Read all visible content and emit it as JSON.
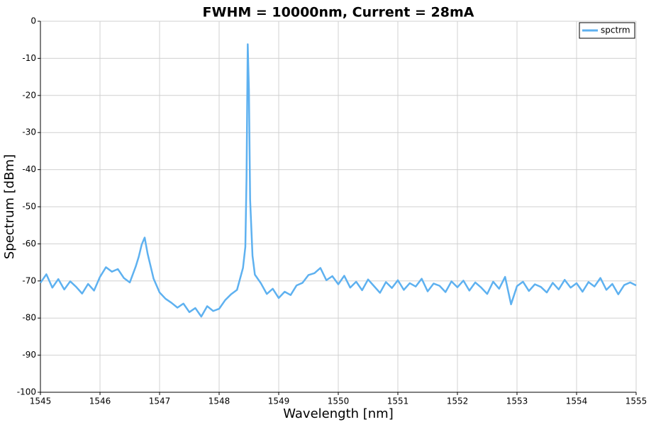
{
  "chart_data": {
    "type": "line",
    "title": "FWHM = 10000nm, Current = 28mA",
    "xlabel": "Wavelength [nm]",
    "ylabel": "Spectrum [dBm]",
    "x": [
      1545.0,
      1545.1,
      1545.2,
      1545.3,
      1545.4,
      1545.5,
      1545.6,
      1545.7,
      1545.8,
      1545.9,
      1546.0,
      1546.1,
      1546.2,
      1546.3,
      1546.4,
      1546.5,
      1546.6,
      1546.65,
      1546.7,
      1546.75,
      1546.8,
      1546.9,
      1547.0,
      1547.1,
      1547.2,
      1547.3,
      1547.4,
      1547.5,
      1547.6,
      1547.7,
      1547.8,
      1547.9,
      1548.0,
      1548.1,
      1548.2,
      1548.3,
      1548.4,
      1548.44,
      1548.46,
      1548.48,
      1548.5,
      1548.52,
      1548.56,
      1548.6,
      1548.7,
      1548.8,
      1548.9,
      1549.0,
      1549.1,
      1549.2,
      1549.3,
      1549.4,
      1549.5,
      1549.6,
      1549.7,
      1549.8,
      1549.9,
      1550.0,
      1550.1,
      1550.2,
      1550.3,
      1550.4,
      1550.5,
      1550.6,
      1550.7,
      1550.8,
      1550.9,
      1551.0,
      1551.1,
      1551.2,
      1551.3,
      1551.4,
      1551.5,
      1551.6,
      1551.7,
      1551.8,
      1551.9,
      1552.0,
      1552.1,
      1552.2,
      1552.3,
      1552.4,
      1552.5,
      1552.6,
      1552.7,
      1552.8,
      1552.9,
      1553.0,
      1553.1,
      1553.2,
      1553.3,
      1553.4,
      1553.5,
      1553.6,
      1553.7,
      1553.8,
      1553.9,
      1554.0,
      1554.1,
      1554.2,
      1554.3,
      1554.4,
      1554.5,
      1554.6,
      1554.7,
      1554.8,
      1554.9,
      1555.0
    ],
    "series": [
      {
        "name": "spctrm",
        "color": "#5eb1f0",
        "values": [
          -70.5,
          -68.2,
          -71.8,
          -69.5,
          -72.3,
          -70.1,
          -71.6,
          -73.4,
          -70.8,
          -72.6,
          -68.9,
          -66.3,
          -67.5,
          -66.8,
          -69.2,
          -70.4,
          -66.1,
          -63.5,
          -60.2,
          -58.3,
          -62.7,
          -69.4,
          -73.1,
          -74.8,
          -75.9,
          -77.2,
          -76.1,
          -78.4,
          -77.3,
          -79.6,
          -76.8,
          -78.1,
          -77.5,
          -75.2,
          -73.6,
          -72.4,
          -66.5,
          -60.8,
          -42.0,
          -6.2,
          -18.5,
          -48.0,
          -63.2,
          -68.3,
          -70.6,
          -73.5,
          -72.1,
          -74.6,
          -72.9,
          -73.8,
          -71.2,
          -70.5,
          -68.4,
          -67.9,
          -66.5,
          -69.8,
          -68.7,
          -70.9,
          -68.6,
          -71.8,
          -70.2,
          -72.5,
          -69.6,
          -71.4,
          -73.2,
          -70.3,
          -71.9,
          -69.8,
          -72.4,
          -70.6,
          -71.5,
          -69.4,
          -72.8,
          -70.7,
          -71.3,
          -73.0,
          -70.1,
          -71.7,
          -69.9,
          -72.6,
          -70.4,
          -71.8,
          -73.5,
          -70.2,
          -72.1,
          -68.9,
          -76.3,
          -71.4,
          -70.2,
          -72.7,
          -70.9,
          -71.6,
          -73.1,
          -70.5,
          -72.3,
          -69.7,
          -71.8,
          -70.6,
          -72.9,
          -70.3,
          -71.5,
          -69.2,
          -72.4,
          -70.8,
          -73.6,
          -71.1,
          -70.4,
          -71.2
        ]
      }
    ],
    "xlim": [
      1545,
      1555
    ],
    "xticks": [
      1545,
      1546,
      1547,
      1548,
      1549,
      1550,
      1551,
      1552,
      1553,
      1554,
      1555
    ],
    "ylim": [
      -100,
      0
    ],
    "yticks": [
      0,
      -10,
      -20,
      -30,
      -40,
      -50,
      -60,
      -70,
      -80,
      -90,
      -100
    ],
    "grid": true,
    "legend": "upper right"
  }
}
